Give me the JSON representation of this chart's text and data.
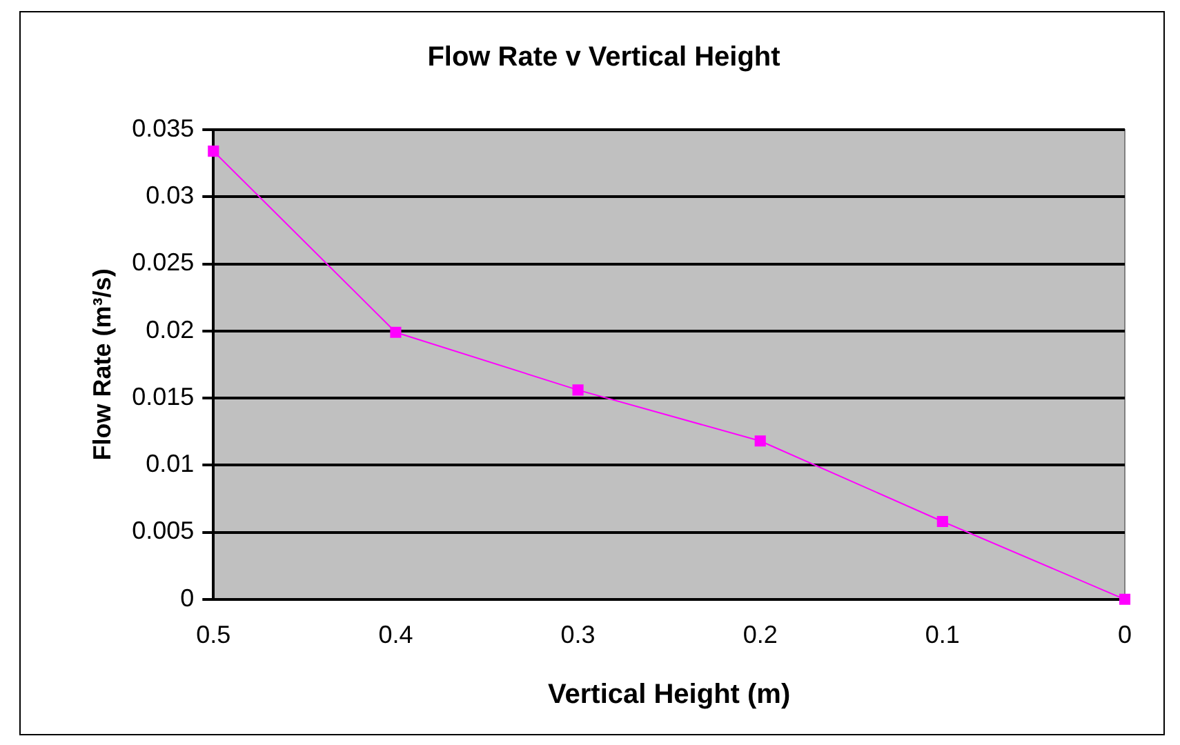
{
  "chart_data": {
    "type": "line",
    "title": "Flow Rate v Vertical Height",
    "xlabel": "Vertical Height (m)",
    "ylabel": "Flow Rate (m³/s)",
    "x": [
      0.5,
      0.4,
      0.3,
      0.2,
      0.1,
      0
    ],
    "series": [
      {
        "color": "#ff00ff",
        "values": [
          0.0334,
          0.0199,
          0.0156,
          0.0118,
          0.0058,
          0
        ]
      }
    ],
    "xlim": [
      0.5,
      0
    ],
    "xticks": [
      0.5,
      0.4,
      0.3,
      0.2,
      0.1,
      0
    ],
    "ylim": [
      0,
      0.035
    ],
    "yticks": [
      0,
      0.005,
      0.01,
      0.015,
      0.02,
      0.025,
      0.03,
      0.035
    ],
    "grid": "y",
    "legend": false,
    "marker": "square",
    "line_style": "solid"
  }
}
